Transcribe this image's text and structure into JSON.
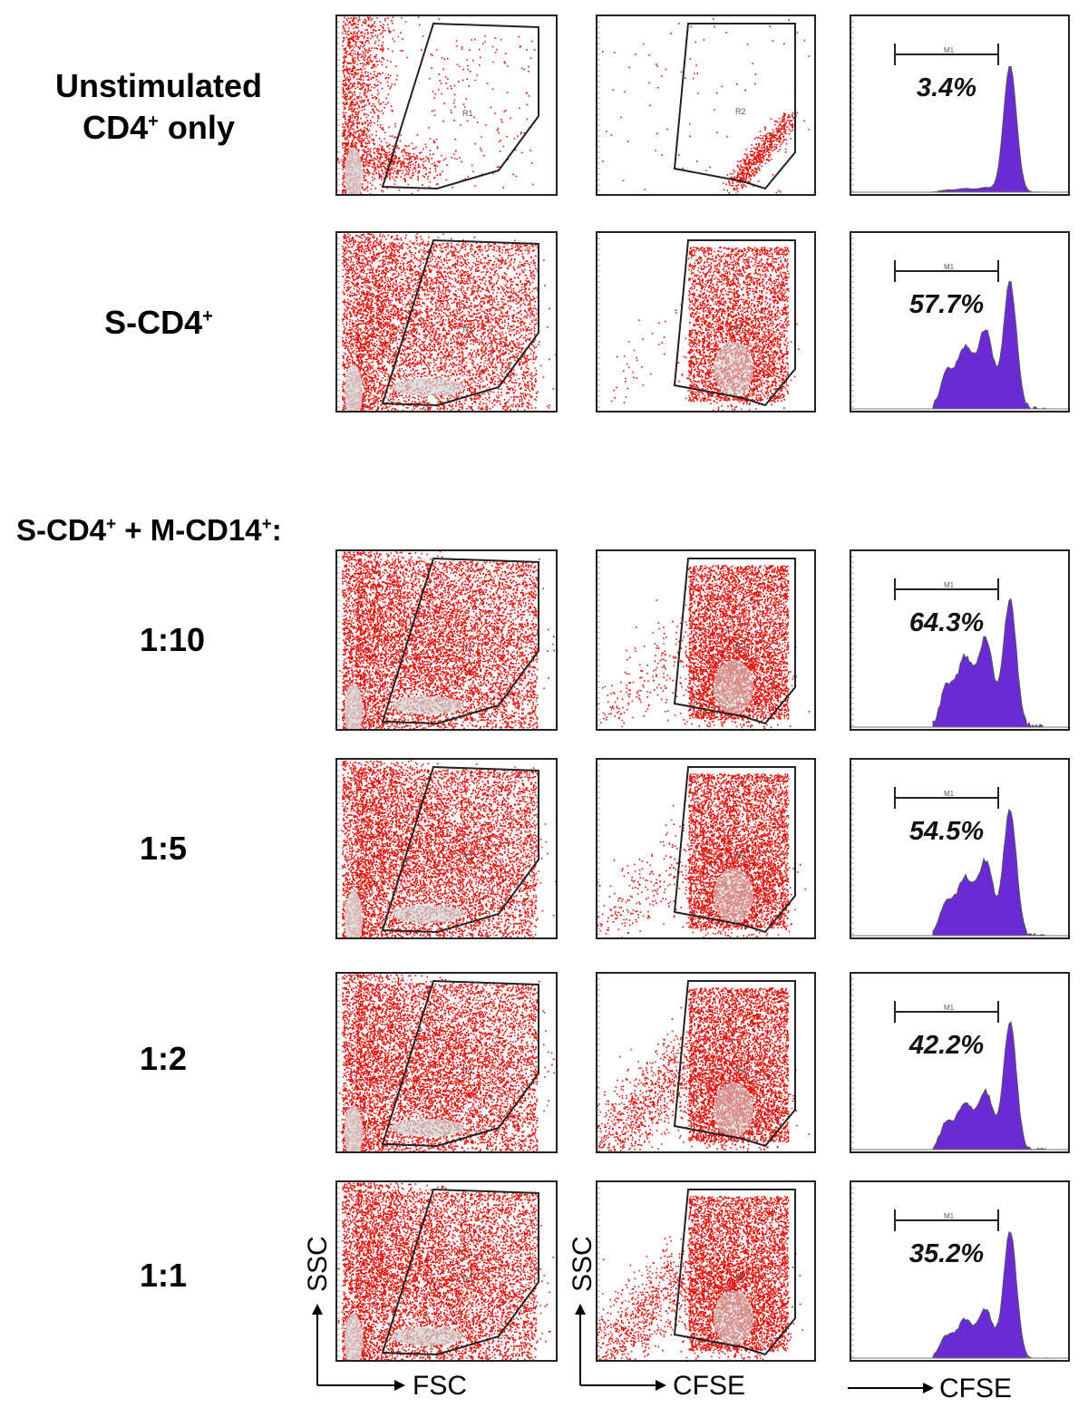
{
  "labels": {
    "row1_line1": "Unstimulated",
    "row1_line2_main": "CD4",
    "row1_line2_sup": "+",
    "row1_line2_rest": " only",
    "row2_main": "S-CD4",
    "row2_sup": "+",
    "group_part1": "S-CD4",
    "group_sup1": "+",
    "group_part2": " + M-CD14",
    "group_sup2": "+",
    "group_part3": ":",
    "row3": "1:10",
    "row4": "1:5",
    "row5": "1:2",
    "row6": "1:1"
  },
  "gate_labels": {
    "first": "R1",
    "second": "R2",
    "marker": "M1"
  },
  "axes": {
    "plot1_x": "FSC",
    "plot1_y": "SSC",
    "plot2_x": "CFSE",
    "plot2_y": "SSC",
    "plot3_x": "CFSE"
  },
  "colors": {
    "dots": "#e0140e",
    "histogram": "#6a2bd3",
    "gate": "#222222"
  },
  "chart_data": {
    "type": "histogram",
    "title": "",
    "xlabel": "CFSE",
    "ylabel": "",
    "categories": [
      "Unstimulated CD4+ only",
      "S-CD4+",
      "1:10",
      "1:5",
      "1:2",
      "1:1"
    ],
    "values": [
      3.4,
      57.7,
      64.3,
      54.5,
      42.2,
      35.2
    ],
    "value_labels": [
      "3.4%",
      "57.7%",
      "64.3%",
      "54.5%",
      "42.2%",
      "35.2%"
    ],
    "unit": "%"
  }
}
